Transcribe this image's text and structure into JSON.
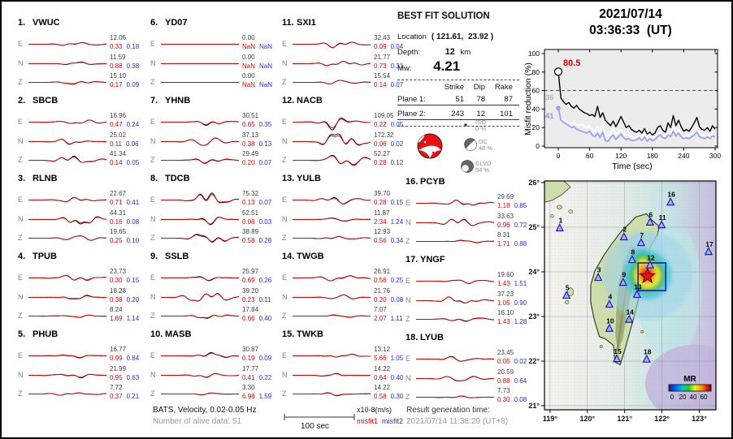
{
  "title": {
    "date": "2021/07/14",
    "time": "03:36:33  (UT)"
  },
  "best_fit": {
    "title": "BEST FIT SOLUTION",
    "location_label": "Location",
    "location_value": "( 121.61,  23.92 )",
    "depth_label": "Depth:",
    "depth_value": "12",
    "depth_unit": "km",
    "mw_label": "Mw:",
    "mw_value": "4.21",
    "col_headers": [
      "Strike",
      "Dip",
      "Rake"
    ],
    "planes": [
      {
        "label": "Plane 1:",
        "strike": "51",
        "dip": "78",
        "rake": "87"
      },
      {
        "label": "Plane 2:",
        "strike": "243",
        "dip": "12",
        "rake": "101"
      }
    ],
    "decomposition": [
      {
        "name": "ISO",
        "percent": "0 %"
      },
      {
        "name": "DC",
        "percent": "46 %"
      },
      {
        "name": "CLVD",
        "percent": "54 %"
      }
    ],
    "beachball_color": "#e81010"
  },
  "misfit_plot": {
    "ylabel": "Misfit reduction (%)",
    "xlabel": "Time (sec)",
    "yticks": [
      {
        "label": "0",
        "v": 0
      },
      {
        "label": "20",
        "v": 20
      },
      {
        "label": "40",
        "v": 40
      },
      {
        "label": "60",
        "v": 60
      },
      {
        "label": "80",
        "v": 80
      },
      {
        "label": "100",
        "v": 100
      }
    ],
    "xticks": [
      {
        "label": "0",
        "t": 0
      },
      {
        "label": "60",
        "t": 60
      },
      {
        "label": "120",
        "t": 120
      },
      {
        "label": "180",
        "t": 180
      },
      {
        "label": "240",
        "t": 240
      },
      {
        "label": "300",
        "t": 300
      }
    ],
    "peak_label": "80.5",
    "white_label": "36",
    "blue_label": "41",
    "dashed_level": 60
  },
  "chart_data": {
    "type": "line",
    "title": "Misfit reduction vs centroid time",
    "xlabel": "Time (sec)",
    "ylabel": "Misfit reduction (%)",
    "xlim": [
      -12,
      300
    ],
    "ylim": [
      0,
      100
    ],
    "x_start": 0,
    "x_step": 5,
    "dashed_threshold": 60,
    "series": [
      {
        "name": "best solution (black)",
        "color": "#000000",
        "start_marker": "open-circle",
        "start_value": 80.5,
        "values": [
          80.5,
          52,
          48,
          45,
          47,
          43,
          41,
          44,
          40,
          38,
          36,
          35,
          33,
          34,
          32,
          43,
          31,
          36,
          28,
          25,
          22,
          27,
          21,
          26,
          32,
          26,
          20,
          22,
          18,
          16,
          15,
          17,
          14,
          19,
          13,
          15,
          12,
          14,
          20,
          22,
          17,
          15,
          25,
          20,
          33,
          22,
          28,
          21,
          16,
          18,
          16,
          20,
          25,
          31,
          21,
          18,
          17,
          20,
          16,
          22,
          18
        ]
      },
      {
        "name": "secondary solution (white)",
        "color": "#ffffff",
        "start_marker": "none",
        "start_value": 36,
        "values": [
          36,
          30,
          28,
          27,
          25,
          24,
          26,
          23,
          22,
          24,
          21,
          20,
          22,
          18,
          16,
          20,
          15,
          22,
          12,
          10,
          14,
          18,
          12,
          15,
          18,
          14,
          11,
          12,
          10,
          9,
          10,
          12,
          9,
          13,
          8,
          10,
          9,
          10,
          13,
          15,
          12,
          10,
          16,
          13,
          20,
          14,
          18,
          13,
          10,
          12,
          11,
          13,
          16,
          20,
          14,
          12,
          11,
          13,
          10,
          15,
          16
        ]
      },
      {
        "name": "tertiary solution (blue)",
        "color": "#9aa4ee",
        "start_marker": "filled-circle",
        "start_value": 41,
        "values": [
          41,
          28,
          26,
          24,
          22,
          20,
          21,
          18,
          17,
          16,
          15,
          14,
          16,
          12,
          10,
          14,
          9,
          15,
          6,
          5,
          9,
          12,
          7,
          10,
          13,
          9,
          7,
          8,
          6,
          6,
          7,
          9,
          6,
          10,
          5,
          8,
          6,
          7,
          10,
          12,
          9,
          8,
          12,
          10,
          16,
          11,
          14,
          10,
          8,
          9,
          8,
          10,
          12,
          15,
          10,
          9,
          8,
          10,
          8,
          11,
          10
        ]
      }
    ]
  },
  "stations": [
    {
      "num": "1.",
      "name": "VWUC",
      "channels": [
        {
          "ch": "E",
          "amp": "12.06",
          "m1": "0.33",
          "m2": "0.18"
        },
        {
          "ch": "N",
          "amp": "11.59",
          "m1": "0.88",
          "m2": "0.38"
        },
        {
          "ch": "Z",
          "amp": "15.10",
          "m1": "0.17",
          "m2": "0.09"
        }
      ]
    },
    {
      "num": "2.",
      "name": "SBCB",
      "channels": [
        {
          "ch": "E",
          "amp": "16.96",
          "m1": "0.47",
          "m2": "0.24"
        },
        {
          "ch": "N",
          "amp": "25.02",
          "m1": "0.11",
          "m2": "0.06"
        },
        {
          "ch": "Z",
          "amp": "41.34",
          "m1": "0.14",
          "m2": "0.05"
        }
      ]
    },
    {
      "num": "3.",
      "name": "RLNB",
      "channels": [
        {
          "ch": "E",
          "amp": "22.67",
          "m1": "0.71",
          "m2": "0.41"
        },
        {
          "ch": "N",
          "amp": "44.31",
          "m1": "0.16",
          "m2": "0.08"
        },
        {
          "ch": "Z",
          "amp": "19.65",
          "m1": "0.25",
          "m2": "0.10"
        }
      ]
    },
    {
      "num": "4.",
      "name": "TPUB",
      "channels": [
        {
          "ch": "E",
          "amp": "23.73",
          "m1": "0.30",
          "m2": "0.15"
        },
        {
          "ch": "N",
          "amp": "18.28",
          "m1": "0.38",
          "m2": "0.20"
        },
        {
          "ch": "Z",
          "amp": "8.24",
          "m1": "1.69",
          "m2": "1.14"
        }
      ]
    },
    {
      "num": "5.",
      "name": "PHUB",
      "channels": [
        {
          "ch": "E",
          "amp": "16.77",
          "m1": "0.99",
          "m2": "0.84"
        },
        {
          "ch": "N",
          "amp": "21.99",
          "m1": "0.95",
          "m2": "0.63"
        },
        {
          "ch": "Z",
          "amp": "7.72",
          "m1": "0.37",
          "m2": "0.21"
        }
      ]
    },
    {
      "num": "6.",
      "name": "YD07",
      "channels": [
        {
          "ch": "E",
          "amp": "0.00",
          "m1": "NaN",
          "m2": "NaN"
        },
        {
          "ch": "N",
          "amp": "0.00",
          "m1": "NaN",
          "m2": "NaN"
        },
        {
          "ch": "Z",
          "amp": "0.00",
          "m1": "NaN",
          "m2": "NaN"
        }
      ]
    },
    {
      "num": "7.",
      "name": "YHNB",
      "channels": [
        {
          "ch": "E",
          "amp": "30.51",
          "m1": "0.65",
          "m2": "0.35"
        },
        {
          "ch": "N",
          "amp": "37.13",
          "m1": "0.38",
          "m2": "0.13"
        },
        {
          "ch": "Z",
          "amp": "29.49",
          "m1": "0.20",
          "m2": "0.07"
        }
      ]
    },
    {
      "num": "8.",
      "name": "TDCB",
      "channels": [
        {
          "ch": "E",
          "amp": "75.32",
          "m1": "0.13",
          "m2": "0.07"
        },
        {
          "ch": "N",
          "amp": "52.51",
          "m1": "0.06",
          "m2": "0.03"
        },
        {
          "ch": "Z",
          "amp": "38.89",
          "m1": "0.58",
          "m2": "0.28"
        }
      ]
    },
    {
      "num": "9.",
      "name": "SSLB",
      "channels": [
        {
          "ch": "E",
          "amp": "25.97",
          "m1": "0.69",
          "m2": "0.26"
        },
        {
          "ch": "N",
          "amp": "39.20",
          "m1": "0.23",
          "m2": "0.11"
        },
        {
          "ch": "Z",
          "amp": "17.84",
          "m1": "0.66",
          "m2": "0.40"
        }
      ]
    },
    {
      "num": "10.",
      "name": "MASB",
      "channels": [
        {
          "ch": "E",
          "amp": "30.87",
          "m1": "0.19",
          "m2": "0.09"
        },
        {
          "ch": "N",
          "amp": "17.77",
          "m1": "0.41",
          "m2": "0.22"
        },
        {
          "ch": "Z",
          "amp": "3.30",
          "m1": "6.98",
          "m2": "1.59"
        }
      ]
    },
    {
      "num": "11.",
      "name": "SXI1",
      "channels": [
        {
          "ch": "E",
          "amp": "32.43",
          "m1": "0.09",
          "m2": "0.04"
        },
        {
          "ch": "N",
          "amp": "21.77",
          "m1": "0.73",
          "m2": "0.31"
        },
        {
          "ch": "Z",
          "amp": "15.54",
          "m1": "0.14",
          "m2": "0.07"
        }
      ]
    },
    {
      "num": "12.",
      "name": "NACB",
      "channels": [
        {
          "ch": "E",
          "amp": "109.05",
          "m1": "0.22",
          "m2": "0.05"
        },
        {
          "ch": "N",
          "amp": "172.32",
          "m1": "0.06",
          "m2": "0.02"
        },
        {
          "ch": "Z",
          "amp": "52.27",
          "m1": "0.28",
          "m2": "0.12"
        }
      ]
    },
    {
      "num": "13.",
      "name": "YULB",
      "channels": [
        {
          "ch": "E",
          "amp": "39.70",
          "m1": "0.28",
          "m2": "0.15"
        },
        {
          "ch": "N",
          "amp": "11.87",
          "m1": "2.34",
          "m2": "1.24"
        },
        {
          "ch": "Z",
          "amp": "12.93",
          "m1": "0.56",
          "m2": "0.34"
        }
      ]
    },
    {
      "num": "14.",
      "name": "TWGB",
      "channels": [
        {
          "ch": "E",
          "amp": "26.91",
          "m1": "0.56",
          "m2": "0.25"
        },
        {
          "ch": "N",
          "amp": "21.76",
          "m1": "0.20",
          "m2": "0.08"
        },
        {
          "ch": "Z",
          "amp": "7.07",
          "m1": "2.07",
          "m2": "1.11"
        }
      ]
    },
    {
      "num": "15.",
      "name": "TWKB",
      "channels": [
        {
          "ch": "E",
          "amp": "13.12",
          "m1": "5.66",
          "m2": "1.05"
        },
        {
          "ch": "N",
          "amp": "14.22",
          "m1": "0.64",
          "m2": "0.40"
        },
        {
          "ch": "Z",
          "amp": "14.22",
          "m1": "0.58",
          "m2": "0.30"
        }
      ]
    },
    {
      "num": "16.",
      "name": "PCYB",
      "channels": [
        {
          "ch": "E",
          "amp": "29.69",
          "m1": "1.18",
          "m2": "0.85"
        },
        {
          "ch": "N",
          "amp": "33.63",
          "m1": "0.96",
          "m2": "0.72"
        },
        {
          "ch": "Z",
          "amp": "8.31",
          "m1": "1.71",
          "m2": "0.88"
        }
      ]
    },
    {
      "num": "17.",
      "name": "YNGF",
      "channels": [
        {
          "ch": "E",
          "amp": "19.60",
          "m1": "1.43",
          "m2": "1.51"
        },
        {
          "ch": "N",
          "amp": "37.23",
          "m1": "1.05",
          "m2": "0.90"
        },
        {
          "ch": "Z",
          "amp": "16.10",
          "m1": "1.43",
          "m2": "1.28"
        }
      ]
    },
    {
      "num": "18.",
      "name": "LYUB",
      "channels": [
        {
          "ch": "E",
          "amp": "23.45",
          "m1": "0.05",
          "m2": "0.02"
        },
        {
          "ch": "N",
          "amp": "20.59",
          "m1": "0.88",
          "m2": "0.64"
        },
        {
          "ch": "Z",
          "amp": "7.73",
          "m1": "0.30",
          "m2": "0.08"
        }
      ]
    }
  ],
  "footer": {
    "band_label": "BATS, Velocity, 0.02-0.05 Hz",
    "alive_label": "Number of alive data: 51",
    "scalebar_label": "100 sec",
    "unit_label": "x10-8(m/s)",
    "misfit1_label": "misfit1",
    "misfit2_label": "misfit2",
    "result_time_label": "Result generation time:",
    "result_time_value": "2021/07/14 11:38:29 (UT+8)"
  },
  "map": {
    "lat_ticks": [
      {
        "label": "26°",
        "lat": 26
      },
      {
        "label": "25°",
        "lat": 25
      },
      {
        "label": "24°",
        "lat": 24
      },
      {
        "label": "23°",
        "lat": 23
      },
      {
        "label": "22°",
        "lat": 22
      },
      {
        "label": "21°",
        "lat": 21
      }
    ],
    "lon_ticks": [
      {
        "label": "119°",
        "lon": 119
      },
      {
        "label": "120°",
        "lon": 120
      },
      {
        "label": "121°",
        "lon": 121
      },
      {
        "label": "122°",
        "lon": 122
      },
      {
        "label": "123°",
        "lon": 123
      }
    ],
    "stations": [
      {
        "id": "1",
        "lon": 119.26,
        "lat": 24.98
      },
      {
        "id": "2",
        "lon": 120.98,
        "lat": 24.78
      },
      {
        "id": "3",
        "lon": 120.29,
        "lat": 23.87
      },
      {
        "id": "4",
        "lon": 120.59,
        "lat": 23.27
      },
      {
        "id": "5",
        "lon": 119.44,
        "lat": 23.47
      },
      {
        "id": "6",
        "lon": 121.68,
        "lat": 25.11
      },
      {
        "id": "7",
        "lon": 121.44,
        "lat": 24.65
      },
      {
        "id": "8",
        "lon": 121.2,
        "lat": 24.27
      },
      {
        "id": "9",
        "lon": 120.96,
        "lat": 23.76
      },
      {
        "id": "10",
        "lon": 120.59,
        "lat": 22.73
      },
      {
        "id": "11",
        "lon": 121.99,
        "lat": 25.05
      },
      {
        "id": "12",
        "lon": 121.68,
        "lat": 24.15
      },
      {
        "id": "13",
        "lon": 121.33,
        "lat": 23.49
      },
      {
        "id": "14",
        "lon": 121.12,
        "lat": 22.93
      },
      {
        "id": "15",
        "lon": 120.79,
        "lat": 22.05
      },
      {
        "id": "16",
        "lon": 122.23,
        "lat": 25.56
      },
      {
        "id": "17",
        "lon": 123.25,
        "lat": 24.45
      },
      {
        "id": "18",
        "lon": 121.59,
        "lat": 22.04
      }
    ],
    "epicenter": {
      "lon": 121.61,
      "lat": 23.92
    },
    "select_box": {
      "lon_min": 121.36,
      "lat_min": 23.58,
      "lon_max": 122.1,
      "lat_max": 24.2
    },
    "colorbar": {
      "title": "MR",
      "tick_labels": [
        "0",
        "20",
        "40",
        "60"
      ]
    }
  }
}
